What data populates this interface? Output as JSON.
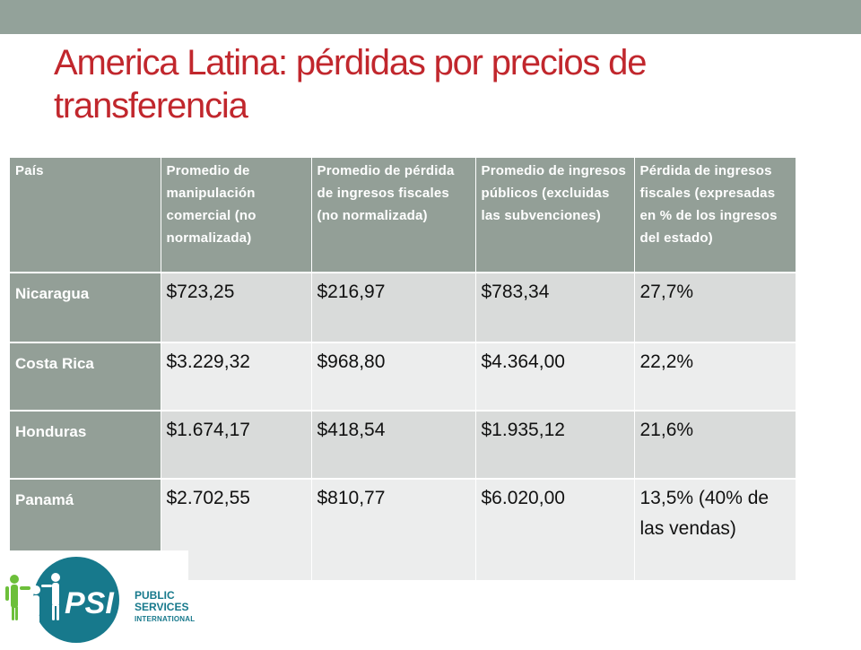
{
  "slide": {
    "title": "America Latina: pérdidas por precios de transferencia"
  },
  "table": {
    "headers": [
      "País",
      "Promedio de manipulación comercial (no normalizada)",
      "Promedio de pérdida de ingresos fiscales (no normalizada)",
      "Promedio de ingresos públicos (excluidas las subvenciones)",
      "Pérdida de ingresos fiscales (expresadas en % de los ingresos del estado)"
    ],
    "rows": [
      [
        "Nicaragua",
        "$723,25",
        "$216,97",
        "$783,34",
        "27,7%"
      ],
      [
        "Costa Rica",
        "$3.229,32",
        "$968,80",
        "$4.364,00",
        "22,2%"
      ],
      [
        "Honduras",
        "$1.674,17",
        "$418,54",
        "$1.935,12",
        "21,6%"
      ],
      [
        "Panamá",
        "$2.702,55",
        "$810,77",
        "$6.020,00",
        "13,5% (40% de las vendas)"
      ]
    ]
  },
  "logo": {
    "mark": "PSI",
    "line1": "PUBLIC",
    "line2": "SERVICES",
    "line3": "INTERNATIONAL"
  },
  "colors": {
    "top_bar": "#93a29a",
    "title": "#c1272d",
    "header_bg": "#939f97",
    "row_dark": "#d9dbda",
    "row_light": "#eceded",
    "logo_teal": "#17798c"
  }
}
